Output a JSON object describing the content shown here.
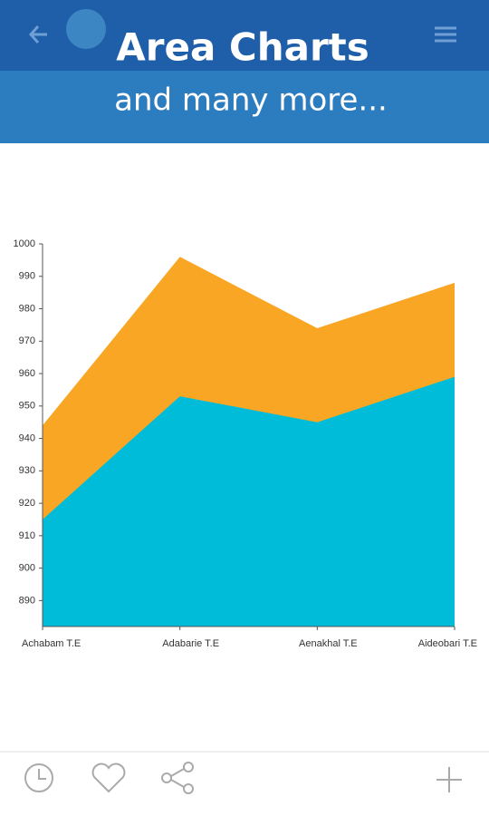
{
  "header": {
    "title": "Area Charts",
    "subtitle": "and many more..."
  },
  "chart_data": {
    "type": "area",
    "categories": [
      "Achabam T.E",
      "Adabarie T.E",
      "Aenakhal T.E",
      "Aideobari T.E"
    ],
    "series": [
      {
        "color": "#f9a624",
        "values": [
          944,
          996,
          974,
          988
        ]
      },
      {
        "color": "#00bcd9",
        "values": [
          915,
          953,
          945,
          959
        ]
      }
    ],
    "ylim": [
      882,
      1000
    ],
    "yticks": [
      890,
      900,
      910,
      920,
      930,
      940,
      950,
      960,
      970,
      980,
      990,
      1000
    ]
  }
}
